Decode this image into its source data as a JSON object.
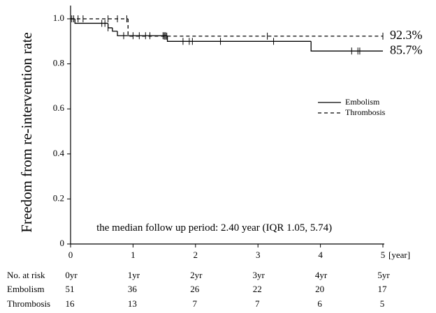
{
  "chart_data": {
    "type": "km",
    "y_label": "Freedom from re-intervention rate",
    "x_unit": "[year]",
    "xlim": [
      0,
      5
    ],
    "xticks": [
      0,
      1,
      2,
      3,
      4,
      5
    ],
    "ylim": [
      0,
      1
    ],
    "yticks": [
      0,
      0.2,
      0.4,
      0.6,
      0.8,
      {
        "value": 1,
        "label": "1.0"
      }
    ],
    "series": [
      {
        "name": "Embolism",
        "color": "#000000",
        "dash": false,
        "x": [
          0,
          0.07,
          0.6,
          0.67,
          0.75,
          1.55,
          3.85
        ],
        "values": [
          1,
          0.98,
          0.96,
          0.945,
          0.925,
          0.9,
          0.857
        ],
        "censored": [
          0.02,
          0.5,
          0.55,
          0.6,
          0.85,
          1.0,
          1.1,
          1.2,
          1.27,
          1.48,
          1.5,
          1.52,
          1.8,
          1.9,
          1.95,
          2.4,
          3.25,
          4.5,
          4.6,
          4.63
        ]
      },
      {
        "name": "Thrombosis",
        "color": "#000000",
        "dash": true,
        "x": [
          0,
          0.92
        ],
        "values": [
          1,
          0.923
        ],
        "censored": [
          0.05,
          0.12,
          0.2,
          0.6,
          0.75,
          0.9,
          1.5,
          1.52,
          1.54,
          3.15,
          5.0
        ]
      }
    ],
    "annotations": [
      {
        "text": "92.3%",
        "x": 5,
        "y": 0.923
      },
      {
        "text": "85.7%",
        "x": 5,
        "y": 0.857
      },
      {
        "text": "the median follow up period: 2.40 year (IQR 1.05, 5.74)",
        "x": 2.3,
        "y": 0.07
      }
    ],
    "risk_table": {
      "header": "No. at risk",
      "columns": [
        "0yr",
        "1yr",
        "2yr",
        "3yr",
        "4yr",
        "5yr"
      ],
      "rows": [
        {
          "name": "Embolism",
          "values": [
            51,
            36,
            26,
            22,
            20,
            17
          ]
        },
        {
          "name": "Thrombosis",
          "values": [
            16,
            13,
            7,
            7,
            6,
            5
          ]
        }
      ]
    }
  }
}
